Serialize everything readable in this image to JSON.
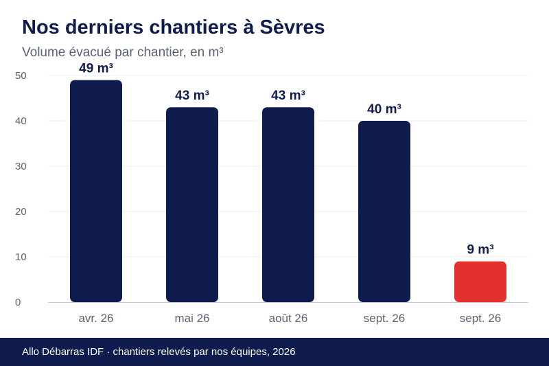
{
  "title": "Nos derniers chantiers à Sèvres",
  "subtitle": "Volume évacué par chantier, en m³",
  "footer": {
    "text": "Allo Débarras IDF · chantiers relevés par nos équipes, 2026"
  },
  "colors": {
    "primary": "#0f1c4d",
    "highlight": "#e53030",
    "axis_text": "#5a6275",
    "grid": "#ececf0"
  },
  "chart_data": {
    "type": "bar",
    "categories": [
      "avr. 26",
      "mai 26",
      "août 26",
      "sept. 26",
      "sept. 26"
    ],
    "values": [
      49,
      43,
      43,
      40,
      9
    ],
    "data_labels": [
      "49 m³",
      "43 m³",
      "43 m³",
      "40 m³",
      "9 m³"
    ],
    "highlight_index": 4,
    "yticks": [
      0,
      10,
      20,
      30,
      40,
      50
    ],
    "ylim": [
      0,
      50
    ],
    "grid": true,
    "legend": "none"
  }
}
